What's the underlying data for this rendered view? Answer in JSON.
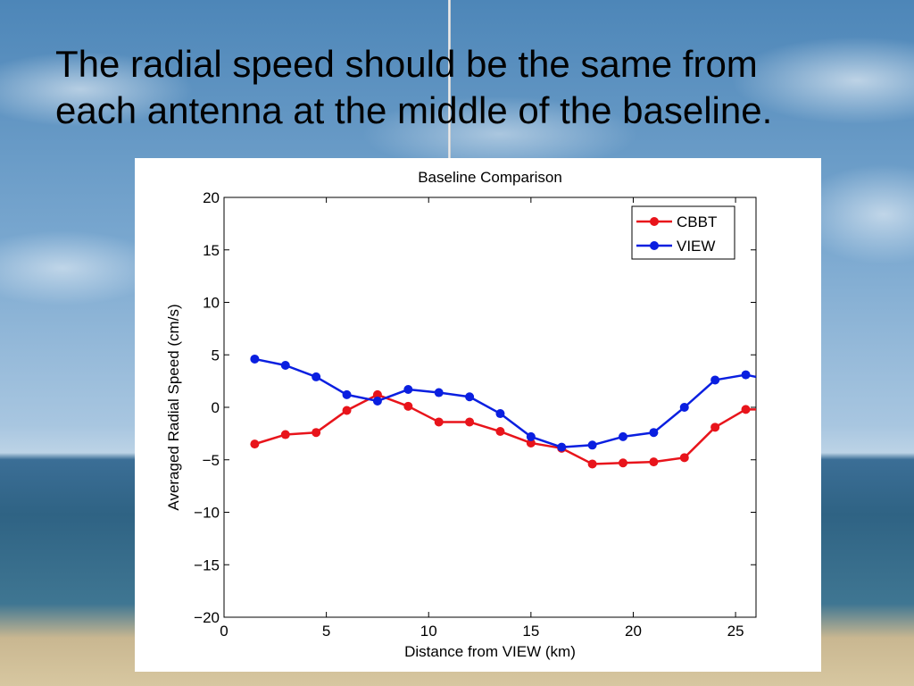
{
  "slide": {
    "title_lines": [
      "The radial speed should be the same from",
      "each antenna at the middle of the baseline."
    ]
  },
  "colors": {
    "CBBT": "#e8141b",
    "VIEW": "#0a1fe0"
  },
  "chart_data": {
    "type": "line",
    "title": "Baseline Comparison",
    "xlabel": "Distance from VIEW (km)",
    "ylabel": "Averaged Radial Speed (cm/s)",
    "xlim": [
      0,
      26
    ],
    "ylim": [
      -20,
      20
    ],
    "xticks": [
      0,
      5,
      10,
      15,
      20,
      25
    ],
    "yticks": [
      -20,
      -15,
      -10,
      -5,
      0,
      5,
      10,
      15,
      20
    ],
    "xtick_labels": [
      "0",
      "5",
      "10",
      "15",
      "20",
      "25"
    ],
    "ytick_labels": [
      "−20",
      "−15",
      "−10",
      "−5",
      "0",
      "5",
      "10",
      "15",
      "20"
    ],
    "grid": false,
    "legend_position": "top-right",
    "series": [
      {
        "name": "CBBT",
        "x": [
          1.5,
          3,
          4.5,
          6,
          7.5,
          9,
          10.5,
          12,
          13.5,
          15,
          16.5,
          18,
          19.5,
          21,
          22.5,
          24,
          25.5,
          26
        ],
        "y": [
          -3.5,
          -2.6,
          -2.4,
          -0.3,
          1.2,
          0.1,
          -1.4,
          -1.4,
          -2.3,
          -3.4,
          -3.9,
          -5.4,
          -5.3,
          -5.2,
          -4.8,
          -1.9,
          -0.2,
          -0.2
        ]
      },
      {
        "name": "VIEW",
        "x": [
          1.5,
          3,
          4.5,
          6,
          7.5,
          9,
          10.5,
          12,
          13.5,
          15,
          16.5,
          18,
          19.5,
          21,
          22.5,
          24,
          25.5,
          26
        ],
        "y": [
          4.6,
          4.0,
          2.9,
          1.2,
          0.6,
          1.7,
          1.4,
          1.0,
          -0.6,
          -2.8,
          -3.8,
          -3.6,
          -2.8,
          -2.4,
          0.0,
          2.6,
          3.1,
          2.9
        ]
      }
    ]
  }
}
